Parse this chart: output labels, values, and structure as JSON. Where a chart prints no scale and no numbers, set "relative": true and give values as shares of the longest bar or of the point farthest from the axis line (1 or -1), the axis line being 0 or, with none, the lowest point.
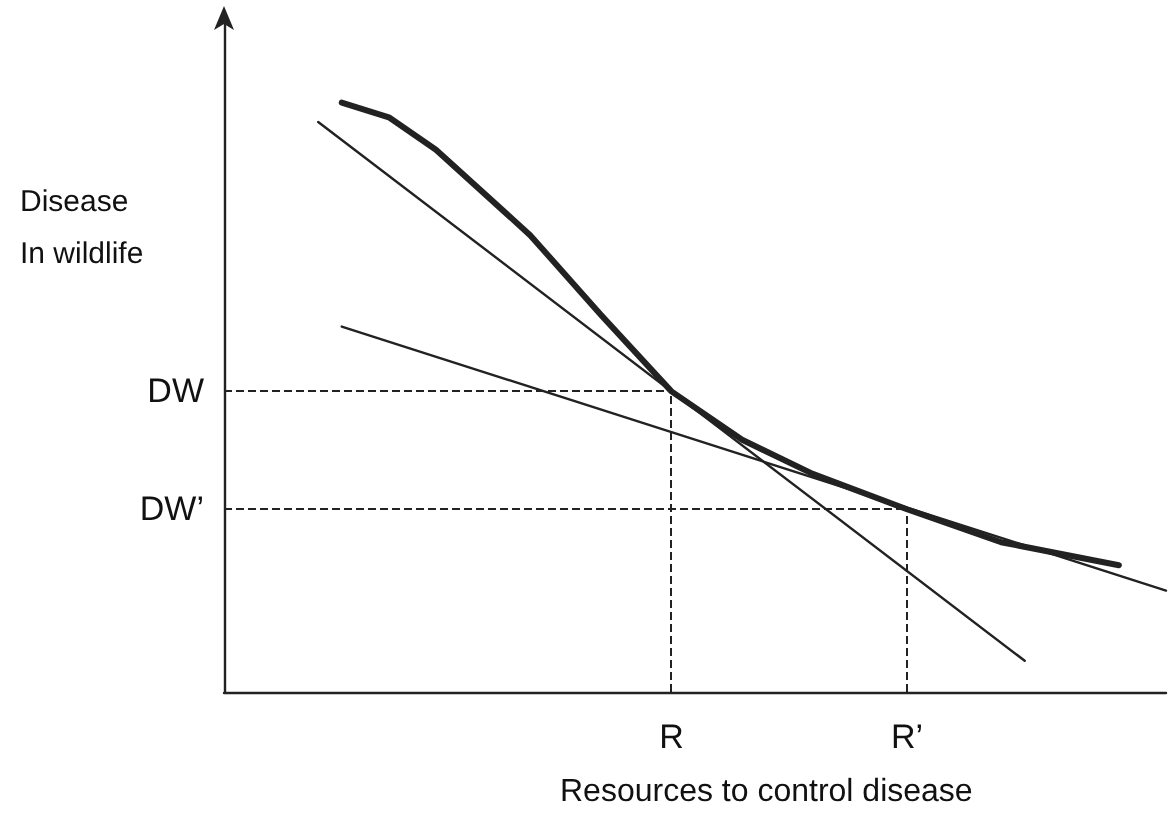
{
  "chart_data": {
    "type": "line",
    "relative": true,
    "xlabel": "Resources to control disease",
    "ylabel": "Disease\nIn wildlife",
    "categories": [
      null,
      null,
      null,
      null,
      null,
      null,
      null,
      null,
      null,
      null,
      null,
      null,
      null,
      null,
      null,
      null,
      null,
      null,
      null,
      "R",
      null,
      null,
      null,
      null,
      null,
      null,
      null,
      null,
      null,
      "R’",
      null,
      null,
      null,
      null,
      null,
      null,
      null,
      null,
      null,
      null,
      null
    ],
    "ref_lines": [
      {
        "axis": "y",
        "value": 0.51,
        "label": "DW",
        "line_style": "dashed",
        "color": "#222222"
      },
      {
        "axis": "y",
        "value": 0.31,
        "label": "DW’",
        "line_style": "dashed",
        "color": "#222222"
      },
      {
        "axis": "x",
        "value": "R",
        "line_style": "dashed",
        "color": "#222222"
      },
      {
        "axis": "x",
        "value": "R’",
        "line_style": "dashed",
        "color": "#222222"
      }
    ],
    "grid": false,
    "marker": "none",
    "series": [
      {
        "color": "#222222",
        "line_style": "solid",
        "values": [
          null,
          null,
          null,
          null,
          null,
          1,
          null,
          0.975,
          null,
          0.92,
          null,
          null,
          null,
          0.775,
          null,
          null,
          0.64,
          null,
          null,
          0.51,
          null,
          null,
          0.428,
          null,
          null,
          0.37,
          null,
          null,
          null,
          0.31,
          null,
          null,
          null,
          0.254,
          null,
          null,
          null,
          null,
          0.215,
          null,
          null
        ]
      },
      {
        "color": "#222222",
        "line_style": "solid",
        "values": [
          null,
          null,
          null,
          null,
          0.967,
          null,
          null,
          null,
          null,
          null,
          null,
          null,
          null,
          null,
          null,
          null,
          null,
          null,
          null,
          null,
          null,
          null,
          null,
          null,
          null,
          null,
          null,
          null,
          null,
          null,
          null,
          null,
          null,
          null,
          0.053,
          null,
          null,
          null,
          null,
          null,
          null
        ]
      },
      {
        "color": "#222222",
        "line_style": "solid",
        "values": [
          null,
          null,
          null,
          null,
          null,
          0.62,
          null,
          null,
          null,
          null,
          null,
          null,
          null,
          null,
          null,
          null,
          null,
          null,
          null,
          null,
          null,
          null,
          null,
          null,
          null,
          null,
          null,
          null,
          null,
          null,
          null,
          null,
          null,
          null,
          null,
          null,
          null,
          null,
          null,
          null,
          0.172
        ]
      }
    ]
  }
}
